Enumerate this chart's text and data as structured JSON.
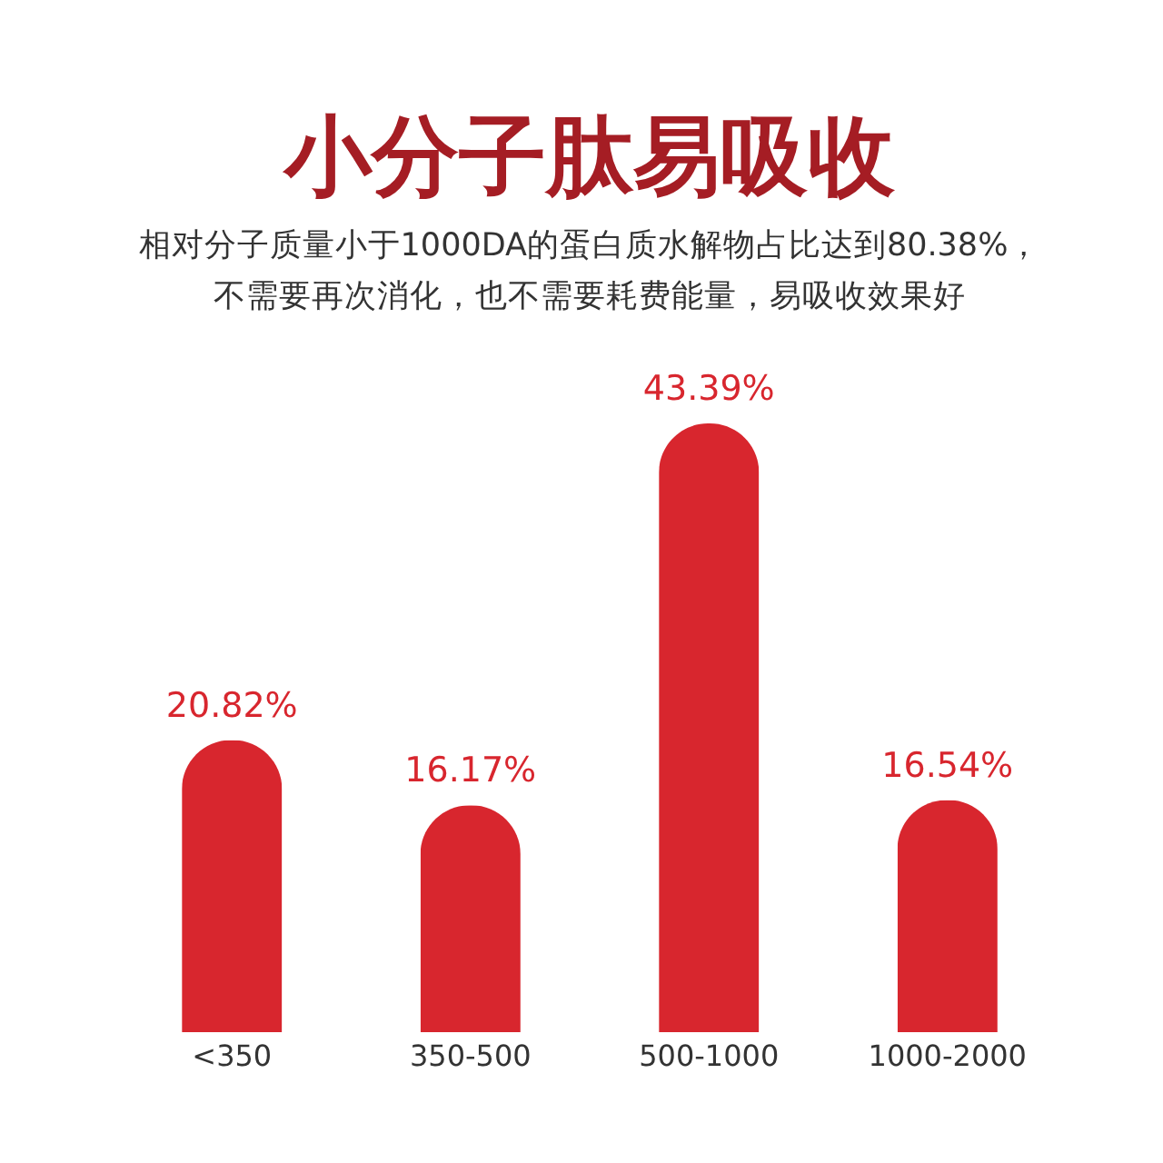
{
  "chart_data": {
    "type": "bar",
    "title": "小分子肽易吸收",
    "subtitle": "相对分子质量小于1000DA的蛋白质水解物占比达到80.38%，不需要再次消化，也不需要耗费能量，易吸收效果好",
    "categories": [
      "<350",
      "350-500",
      "500-1000",
      "1000-2000"
    ],
    "values": [
      20.82,
      16.17,
      43.39,
      16.54
    ],
    "value_labels": [
      "20.82%",
      "16.17%",
      "43.39%",
      "16.54%"
    ],
    "color": "#d8262e",
    "tick_labels": "x"
  }
}
